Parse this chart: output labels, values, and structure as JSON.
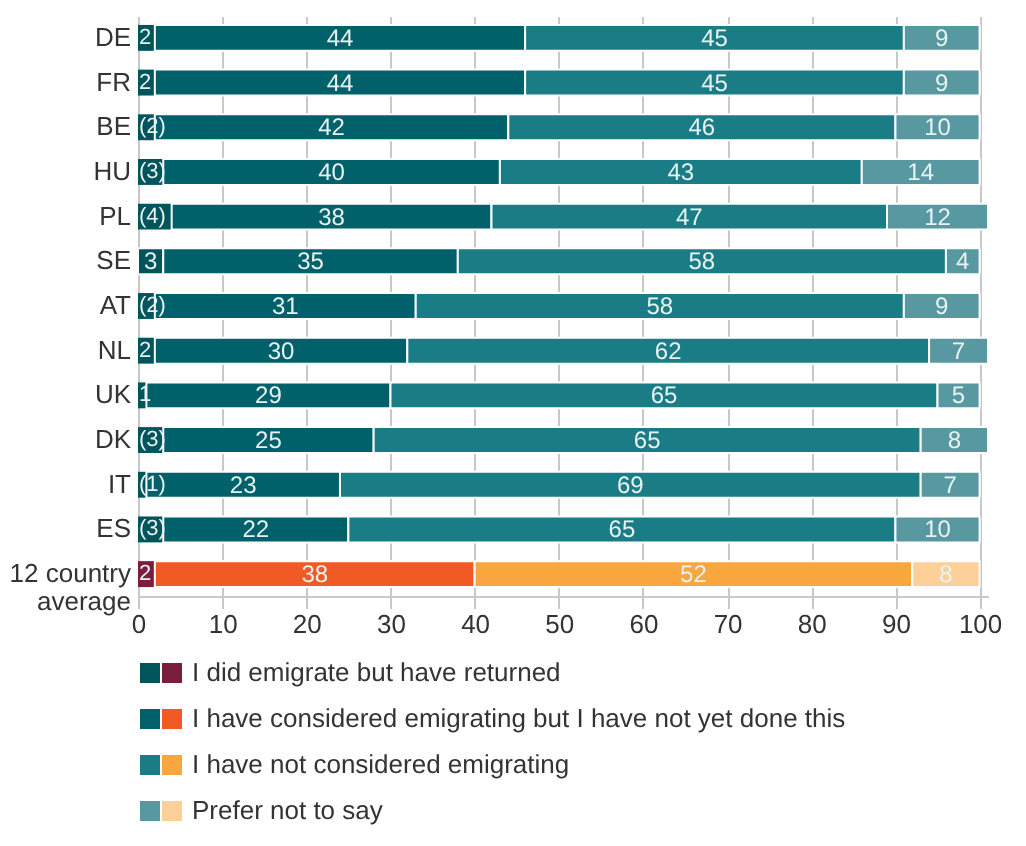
{
  "chart_data": {
    "type": "bar",
    "orientation": "horizontal",
    "stacked": true,
    "categories": [
      "DE",
      "FR",
      "BE",
      "HU",
      "PL",
      "SE",
      "AT",
      "NL",
      "UK",
      "DK",
      "IT",
      "ES",
      "12 country average"
    ],
    "series": [
      {
        "name": "I did emigrate but have returned",
        "color": "#00545c",
        "colors": [
          "#00545c",
          "#00545c",
          "#00545c",
          "#00545c",
          "#00545c",
          "#00545c",
          "#00545c",
          "#00545c",
          "#00545c",
          "#00545c",
          "#00545c",
          "#00545c",
          "#7b1d3c"
        ],
        "values": [
          2,
          2,
          2,
          3,
          4,
          3,
          2,
          2,
          1,
          3,
          1,
          3,
          2
        ],
        "value_labels": [
          "2",
          "2",
          "(2)",
          "(3)",
          "(4)",
          "3",
          "(2)",
          "2",
          "1",
          "(3)",
          "(1)",
          "(3)",
          "2"
        ]
      },
      {
        "name": "I have considered emigrating but I have not yet done this",
        "color": "#00616a",
        "colors": [
          "#00616a",
          "#00616a",
          "#00616a",
          "#00616a",
          "#00616a",
          "#00616a",
          "#00616a",
          "#00616a",
          "#00616a",
          "#00616a",
          "#00616a",
          "#00616a",
          "#f15a24"
        ],
        "values": [
          44,
          44,
          42,
          40,
          38,
          35,
          31,
          30,
          29,
          25,
          23,
          22,
          38
        ],
        "value_labels": [
          "44",
          "44",
          "42",
          "40",
          "38",
          "35",
          "31",
          "30",
          "29",
          "25",
          "23",
          "22",
          "38"
        ]
      },
      {
        "name": "I have not considered emigrating",
        "color": "#1a7d86",
        "colors": [
          "#1a7d86",
          "#1a7d86",
          "#1a7d86",
          "#1a7d86",
          "#1a7d86",
          "#1a7d86",
          "#1a7d86",
          "#1a7d86",
          "#1a7d86",
          "#1a7d86",
          "#1a7d86",
          "#1a7d86",
          "#f9a63f"
        ],
        "values": [
          45,
          45,
          46,
          43,
          47,
          58,
          58,
          62,
          65,
          65,
          69,
          65,
          52
        ],
        "value_labels": [
          "45",
          "45",
          "46",
          "43",
          "47",
          "58",
          "58",
          "62",
          "65",
          "65",
          "69",
          "65",
          "52"
        ]
      },
      {
        "name": "Prefer not to say",
        "color": "#5898a0",
        "colors": [
          "#5898a0",
          "#5898a0",
          "#5898a0",
          "#5898a0",
          "#5898a0",
          "#5898a0",
          "#5898a0",
          "#5898a0",
          "#5898a0",
          "#5898a0",
          "#5898a0",
          "#5898a0",
          "#fdd09a"
        ],
        "values": [
          9,
          9,
          10,
          14,
          12,
          4,
          9,
          7,
          5,
          8,
          7,
          10,
          8
        ],
        "value_labels": [
          "9",
          "9",
          "10",
          "14",
          "12",
          "4",
          "9",
          "7",
          "5",
          "8",
          "7",
          "10",
          "8"
        ]
      }
    ],
    "xlim": [
      0,
      101
    ],
    "xticks": [
      0,
      10,
      20,
      30,
      40,
      50,
      60,
      70,
      80,
      90,
      100
    ],
    "grid": "x",
    "legend": "bottom"
  }
}
